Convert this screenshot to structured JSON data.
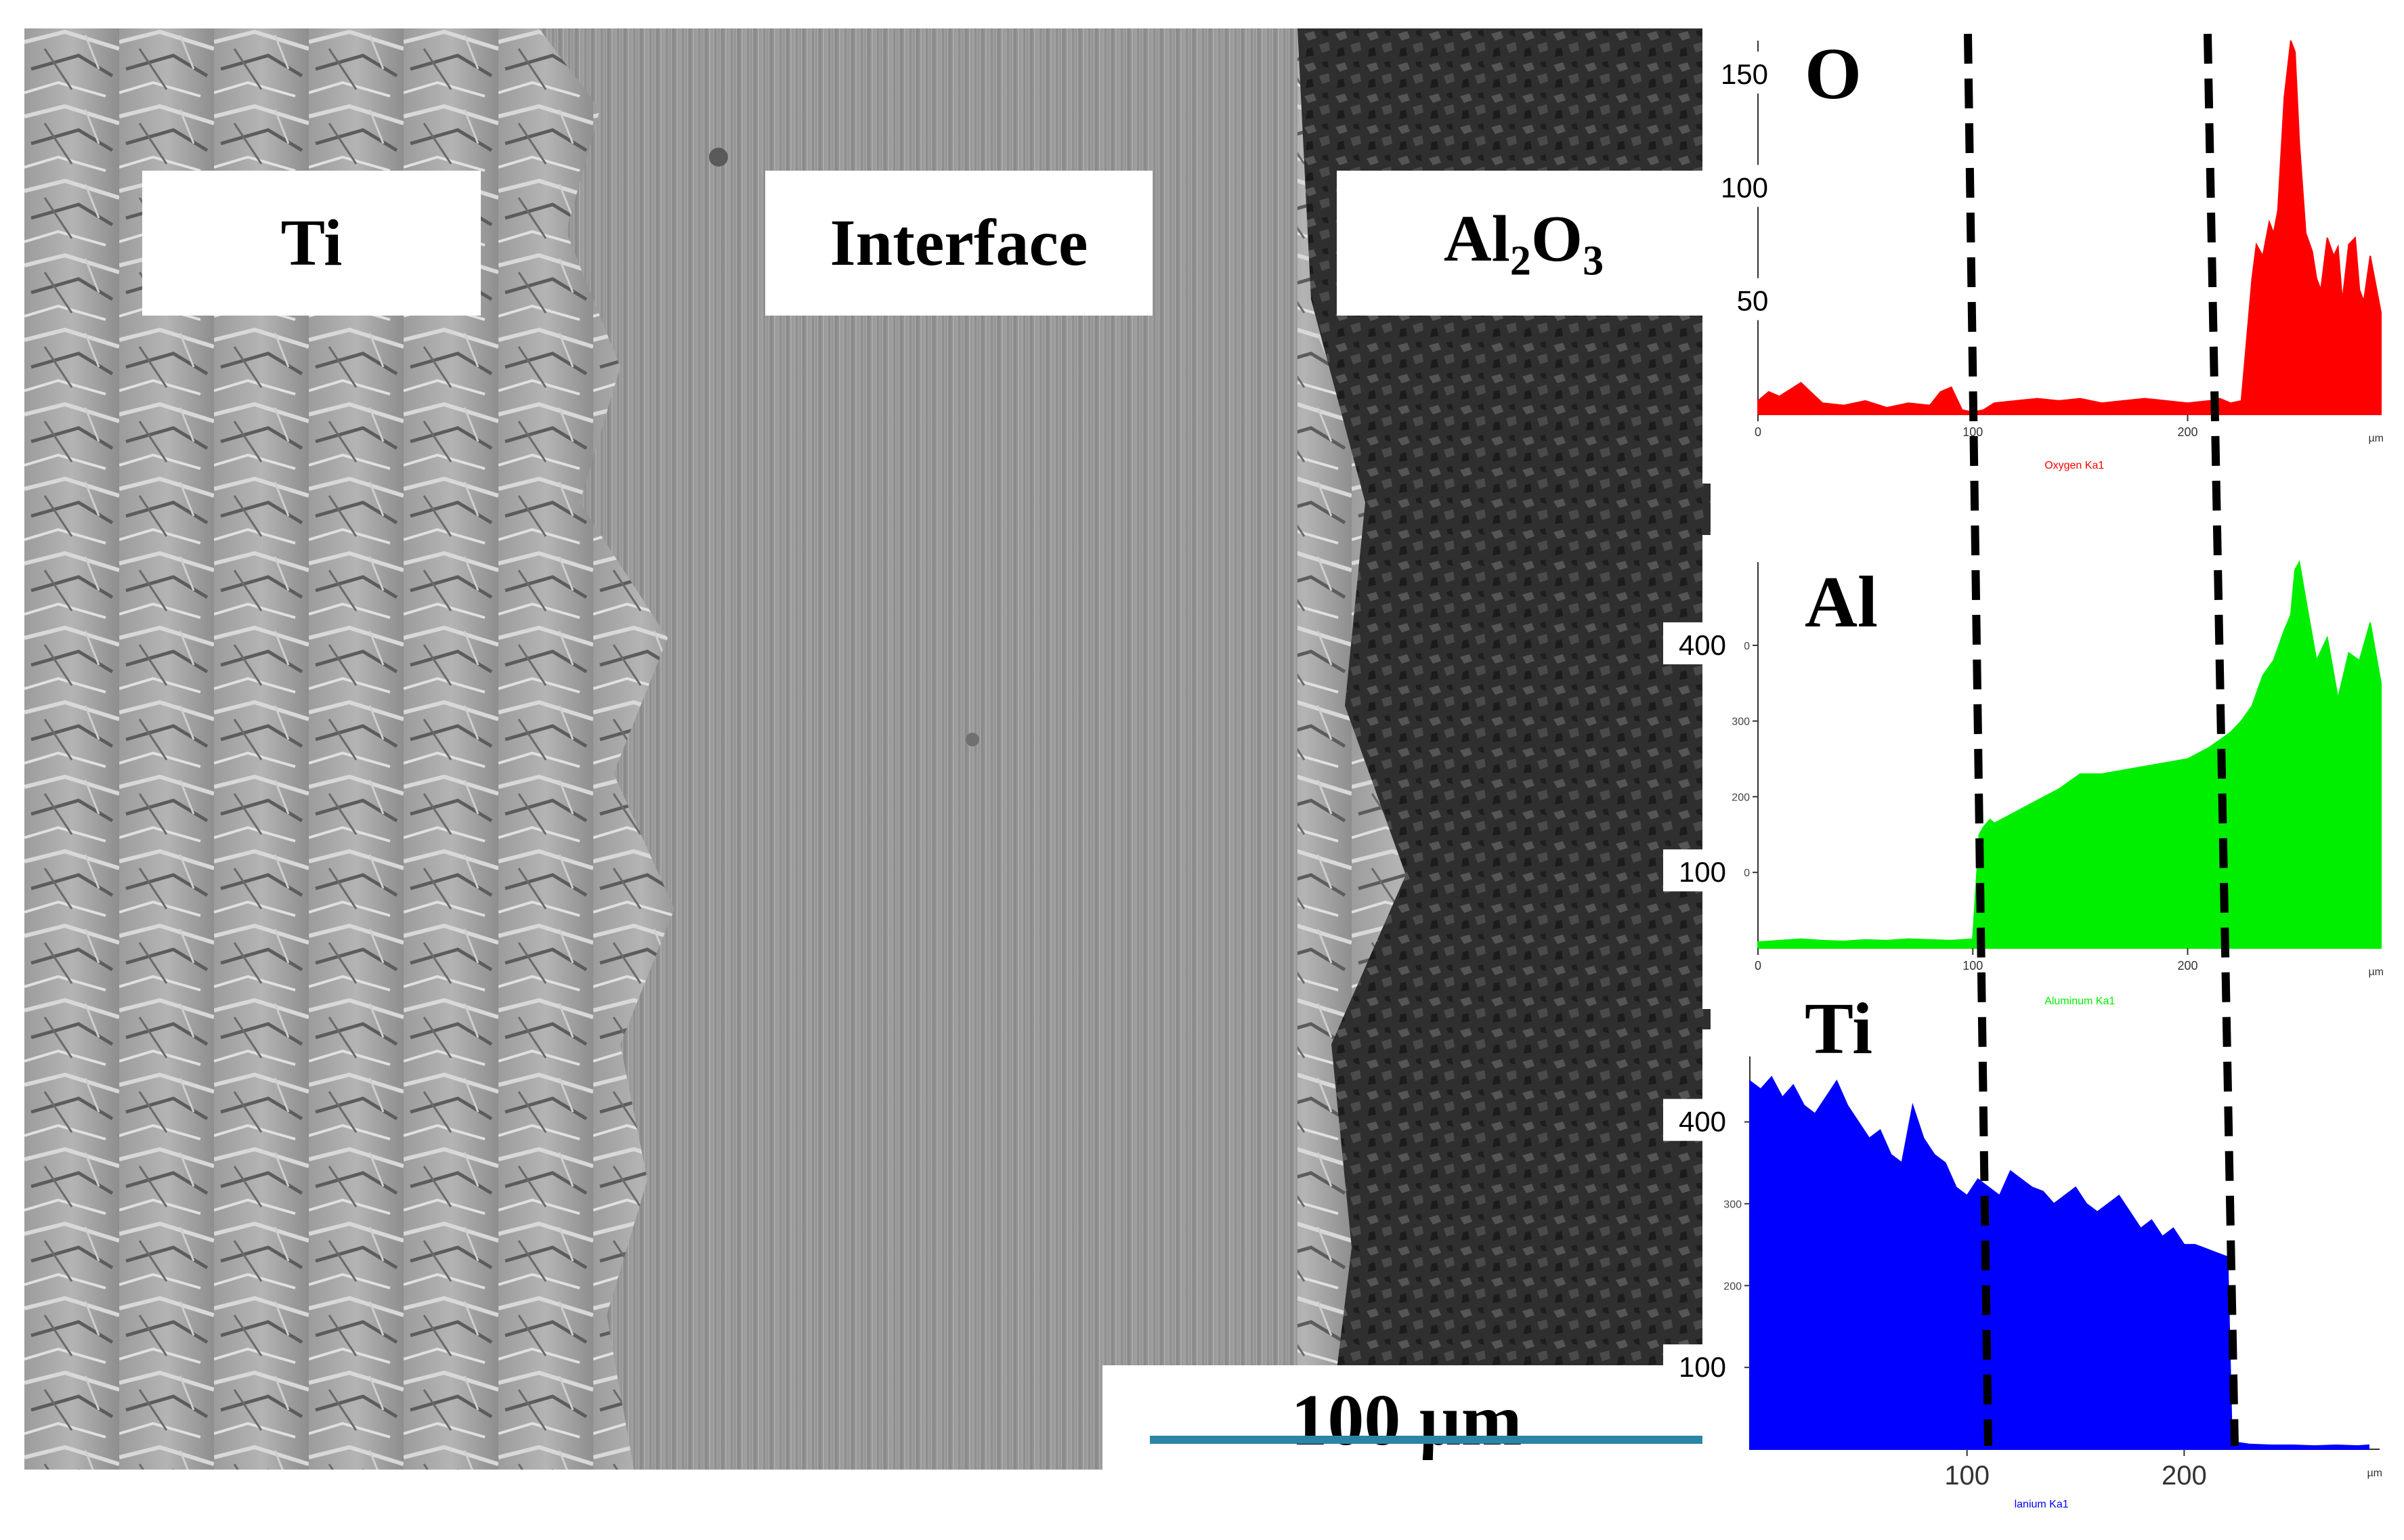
{
  "labels": {
    "ti_region": "Ti",
    "interface_region": "Interface",
    "alumina_main": "Al",
    "alumina_sub1": "2",
    "alumina_mid": "O",
    "alumina_sub2": "3"
  },
  "scale_bar": {
    "text": "100 µm"
  },
  "colors": {
    "oxygen": "#ff0000",
    "aluminum": "#00ee00",
    "titanium": "#0000ff",
    "interface_lines": "#000000",
    "scale_bar": "#2a86a6"
  },
  "chart_data": [
    {
      "type": "area",
      "element": "O",
      "legend": "Oxygen Ka1",
      "color": "#ff0000",
      "x_unit": "µm",
      "xlim": [
        0,
        290
      ],
      "ylim": [
        0,
        165
      ],
      "y_ticks": [
        50,
        100,
        150
      ],
      "x_ticks": [
        0,
        100,
        200
      ],
      "x": [
        0,
        5,
        10,
        15,
        20,
        30,
        40,
        50,
        60,
        70,
        80,
        85,
        90,
        95,
        100,
        105,
        110,
        120,
        130,
        140,
        150,
        160,
        170,
        180,
        190,
        200,
        210,
        215,
        220,
        225,
        230,
        232,
        235,
        238,
        240,
        242,
        245,
        248,
        250,
        252,
        255,
        258,
        260,
        262,
        265,
        268,
        270,
        272,
        275,
        278,
        280,
        282,
        285,
        288,
        290
      ],
      "y": [
        6,
        10,
        8,
        11,
        14,
        5,
        4,
        6,
        3,
        5,
        4,
        10,
        12,
        2,
        1,
        2,
        5,
        6,
        7,
        6,
        7,
        5,
        6,
        7,
        6,
        5,
        6,
        7,
        5,
        6,
        60,
        75,
        70,
        85,
        80,
        90,
        140,
        165,
        160,
        120,
        80,
        72,
        60,
        55,
        78,
        70,
        74,
        50,
        75,
        78,
        55,
        50,
        70,
        55,
        45
      ]
    },
    {
      "type": "area",
      "element": "Al",
      "legend": "Aluminum Ka1",
      "color": "#00ee00",
      "x_unit": "µm",
      "xlim": [
        0,
        290
      ],
      "ylim": [
        0,
        510
      ],
      "y_ticks": [
        100,
        200,
        300,
        400
      ],
      "x_ticks": [
        0,
        100,
        200
      ],
      "x": [
        0,
        10,
        20,
        30,
        40,
        50,
        60,
        70,
        80,
        90,
        100,
        103,
        105,
        108,
        110,
        120,
        130,
        140,
        150,
        160,
        170,
        180,
        190,
        200,
        210,
        215,
        220,
        225,
        230,
        235,
        240,
        245,
        248,
        250,
        252,
        255,
        260,
        265,
        270,
        275,
        280,
        285,
        290
      ],
      "y": [
        8,
        10,
        12,
        10,
        9,
        11,
        10,
        12,
        11,
        10,
        12,
        150,
        160,
        170,
        165,
        180,
        195,
        210,
        230,
        230,
        235,
        240,
        245,
        250,
        265,
        275,
        285,
        300,
        320,
        360,
        380,
        420,
        440,
        500,
        510,
        460,
        380,
        410,
        330,
        390,
        380,
        430,
        350
      ]
    },
    {
      "type": "area",
      "element": "Ti",
      "legend": "lanium Ka1",
      "color": "#0000ff",
      "x_unit": "µm",
      "xlim": [
        0,
        290
      ],
      "ylim": [
        0,
        480
      ],
      "y_ticks": [
        100,
        200,
        300,
        400
      ],
      "x_ticks": [
        100,
        200
      ],
      "x": [
        0,
        5,
        10,
        15,
        20,
        25,
        30,
        35,
        40,
        45,
        50,
        55,
        60,
        65,
        70,
        75,
        80,
        85,
        90,
        95,
        100,
        105,
        110,
        115,
        120,
        125,
        130,
        135,
        140,
        145,
        150,
        155,
        160,
        165,
        170,
        175,
        180,
        185,
        190,
        195,
        200,
        205,
        210,
        215,
        220,
        222,
        225,
        230,
        240,
        250,
        260,
        270,
        280,
        285
      ],
      "y": [
        450,
        440,
        455,
        430,
        445,
        420,
        410,
        430,
        450,
        420,
        400,
        380,
        390,
        360,
        350,
        420,
        380,
        360,
        350,
        320,
        310,
        330,
        320,
        310,
        340,
        330,
        320,
        315,
        300,
        310,
        320,
        300,
        290,
        300,
        310,
        290,
        270,
        280,
        260,
        270,
        250,
        250,
        245,
        240,
        235,
        10,
        8,
        6,
        5,
        5,
        4,
        5,
        4,
        5
      ]
    }
  ]
}
